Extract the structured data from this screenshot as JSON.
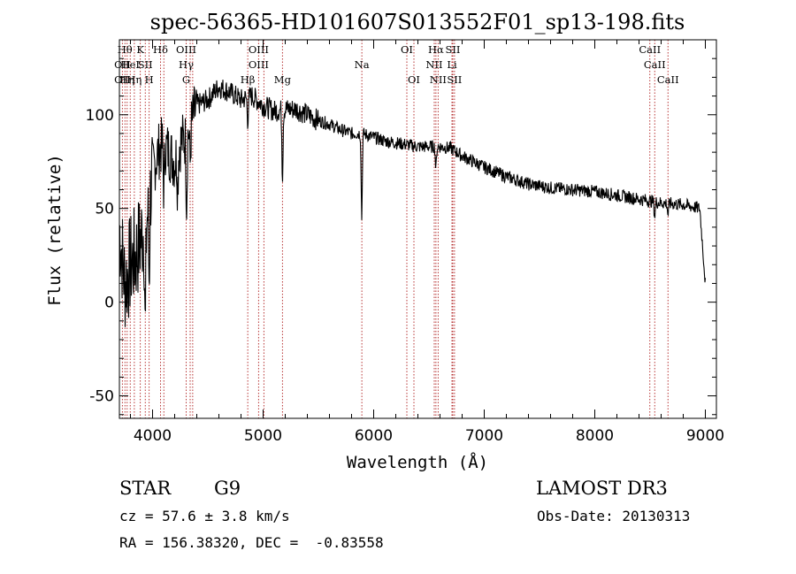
{
  "chart_data": {
    "type": "line",
    "title": "spec-56365-HD101607S013552F01_sp13-198.fits",
    "xlabel": "Wavelength (Å)",
    "ylabel": "Flux (relative)",
    "xlim": [
      3700,
      9100
    ],
    "ylim": [
      -62,
      140
    ],
    "x_ticks": [
      4000,
      5000,
      6000,
      7000,
      8000,
      9000
    ],
    "y_ticks": [
      -50,
      0,
      50,
      100
    ],
    "grid": false,
    "spectrum_anchors": {
      "wavelength": [
        3700,
        3750,
        3800,
        3850,
        3900,
        3950,
        4000,
        4050,
        4100,
        4150,
        4200,
        4250,
        4300,
        4350,
        4400,
        4500,
        4600,
        4700,
        4800,
        4900,
        5000,
        5100,
        5200,
        5300,
        5400,
        5500,
        5600,
        5700,
        5800,
        5900,
        6000,
        6100,
        6200,
        6300,
        6400,
        6500,
        6600,
        6700,
        6800,
        7000,
        7200,
        7400,
        7600,
        7800,
        8000,
        8200,
        8400,
        8600,
        8800,
        8950,
        9000
      ],
      "flux": [
        40,
        10,
        20,
        25,
        35,
        45,
        70,
        80,
        85,
        80,
        75,
        85,
        88,
        95,
        105,
        108,
        115,
        112,
        108,
        110,
        105,
        102,
        103,
        103,
        100,
        97,
        95,
        92,
        90,
        90,
        88,
        86,
        85,
        84,
        83,
        83,
        83,
        82,
        78,
        72,
        67,
        63,
        61,
        60,
        59,
        57,
        55,
        53,
        52,
        50,
        10
      ]
    },
    "absorption_features": [
      {
        "wavelength": 3934,
        "depth": 60
      },
      {
        "wavelength": 3969,
        "depth": 40
      },
      {
        "wavelength": 4102,
        "depth": 25
      },
      {
        "wavelength": 4227,
        "depth": 18
      },
      {
        "wavelength": 4308,
        "depth": 35
      },
      {
        "wavelength": 4340,
        "depth": 20
      },
      {
        "wavelength": 4861,
        "depth": 12
      },
      {
        "wavelength": 5175,
        "depth": 35
      },
      {
        "wavelength": 5892,
        "depth": 45
      },
      {
        "wavelength": 6563,
        "depth": 12
      },
      {
        "wavelength": 8542,
        "depth": 8
      },
      {
        "wavelength": 8662,
        "depth": 6
      }
    ],
    "spectral_lines": [
      {
        "wavelength": 3727,
        "labels": [
          "OII",
          "OII"
        ],
        "rows": [
          1,
          2
        ]
      },
      {
        "wavelength": 3750,
        "labels": [
          "Hθ"
        ],
        "rows": [
          0
        ]
      },
      {
        "wavelength": 3770,
        "labels": [
          "Hη"
        ],
        "rows": [
          2
        ]
      },
      {
        "wavelength": 3798,
        "labels": [
          "HeI"
        ],
        "rows": [
          1
        ]
      },
      {
        "wavelength": 3835,
        "labels": [
          "Hη"
        ],
        "rows": [
          2
        ]
      },
      {
        "wavelength": 3889,
        "labels": [
          "K"
        ],
        "rows": [
          0
        ]
      },
      {
        "wavelength": 3934,
        "labels": [
          "SII"
        ],
        "rows": [
          1
        ]
      },
      {
        "wavelength": 3969,
        "labels": [
          "H"
        ],
        "rows": [
          2
        ]
      },
      {
        "wavelength": 4072,
        "labels": [
          "Hδ"
        ],
        "rows": [
          0
        ]
      },
      {
        "wavelength": 4102,
        "labels": [],
        "rows": []
      },
      {
        "wavelength": 4304,
        "labels": [
          "OIII",
          "Hγ",
          "G"
        ],
        "rows": [
          0,
          1,
          2
        ]
      },
      {
        "wavelength": 4340,
        "labels": [],
        "rows": []
      },
      {
        "wavelength": 4363,
        "labels": [],
        "rows": []
      },
      {
        "wavelength": 4861,
        "labels": [
          "Hβ"
        ],
        "rows": [
          2
        ]
      },
      {
        "wavelength": 4959,
        "labels": [
          "OIII",
          "OIII"
        ],
        "rows": [
          0,
          1
        ]
      },
      {
        "wavelength": 5007,
        "labels": [],
        "rows": []
      },
      {
        "wavelength": 5175,
        "labels": [
          "Mg"
        ],
        "rows": [
          2
        ]
      },
      {
        "wavelength": 5893,
        "labels": [
          "Na"
        ],
        "rows": [
          1
        ]
      },
      {
        "wavelength": 6300,
        "labels": [
          "OI"
        ],
        "rows": [
          0
        ]
      },
      {
        "wavelength": 6364,
        "labels": [
          "OI"
        ],
        "rows": [
          2
        ]
      },
      {
        "wavelength": 6548,
        "labels": [
          "NII"
        ],
        "rows": [
          1
        ]
      },
      {
        "wavelength": 6563,
        "labels": [
          "Hα"
        ],
        "rows": [
          0
        ]
      },
      {
        "wavelength": 6583,
        "labels": [
          "NII"
        ],
        "rows": [
          2
        ]
      },
      {
        "wavelength": 6708,
        "labels": [
          "Li"
        ],
        "rows": [
          1
        ]
      },
      {
        "wavelength": 6716,
        "labels": [
          "SII"
        ],
        "rows": [
          0
        ]
      },
      {
        "wavelength": 6731,
        "labels": [
          "SII"
        ],
        "rows": [
          2
        ]
      },
      {
        "wavelength": 8498,
        "labels": [
          "CaII"
        ],
        "rows": [
          0
        ]
      },
      {
        "wavelength": 8542,
        "labels": [
          "CaII"
        ],
        "rows": [
          1
        ]
      },
      {
        "wavelength": 8662,
        "labels": [
          "CaII"
        ],
        "rows": [
          2
        ]
      }
    ]
  },
  "info": {
    "object_class": "STAR",
    "subclass": "G9",
    "survey": "LAMOST DR3",
    "redshift_line": "cz = 57.6 ± 3.8 km/s",
    "obs_date_line": "Obs-Date: 20130313",
    "coords_line": "RA = 156.38320, DEC =  -0.83558"
  },
  "colors": {
    "axes": "#000000",
    "spectrum": "#000000",
    "line_markers": "#b02020"
  }
}
